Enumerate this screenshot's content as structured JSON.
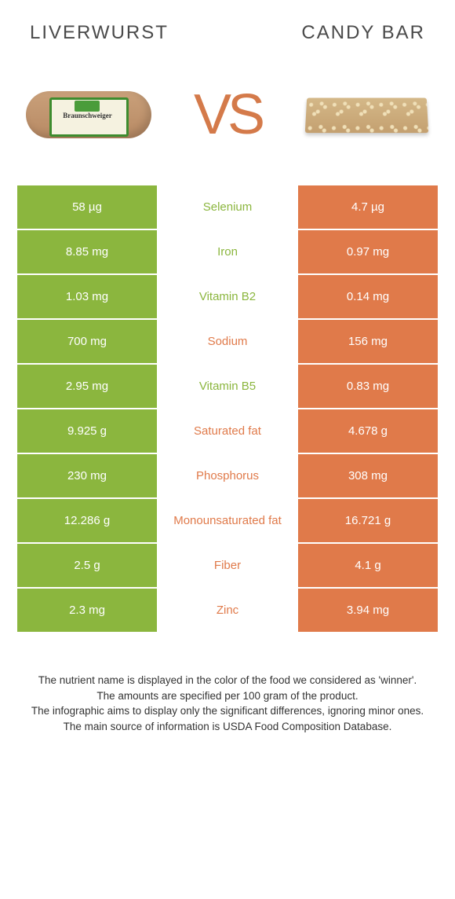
{
  "header": {
    "left": "LIVERWURST",
    "right": "CANDY BAR"
  },
  "vs": "VS",
  "colors": {
    "green": "#8bb63e",
    "orange": "#e07a4a",
    "text": "#333333",
    "white": "#ffffff"
  },
  "rows": [
    {
      "left": "58 µg",
      "label": "Selenium",
      "right": "4.7 µg",
      "winner": "left"
    },
    {
      "left": "8.85 mg",
      "label": "Iron",
      "right": "0.97 mg",
      "winner": "left"
    },
    {
      "left": "1.03 mg",
      "label": "Vitamin B2",
      "right": "0.14 mg",
      "winner": "left"
    },
    {
      "left": "700 mg",
      "label": "Sodium",
      "right": "156 mg",
      "winner": "right"
    },
    {
      "left": "2.95 mg",
      "label": "Vitamin B5",
      "right": "0.83 mg",
      "winner": "left"
    },
    {
      "left": "9.925 g",
      "label": "Saturated fat",
      "right": "4.678 g",
      "winner": "right"
    },
    {
      "left": "230 mg",
      "label": "Phosphorus",
      "right": "308 mg",
      "winner": "right"
    },
    {
      "left": "12.286 g",
      "label": "Monounsaturated fat",
      "right": "16.721 g",
      "winner": "right"
    },
    {
      "left": "2.5 g",
      "label": "Fiber",
      "right": "4.1 g",
      "winner": "right"
    },
    {
      "left": "2.3 mg",
      "label": "Zinc",
      "right": "3.94 mg",
      "winner": "right"
    }
  ],
  "footer": {
    "l1": "The nutrient name is displayed in the color of the food we considered as 'winner'.",
    "l2": "The amounts are specified per 100 gram of the product.",
    "l3": "The infographic aims to display only the significant differences, ignoring minor ones.",
    "l4": "The main source of information is USDA Food Composition Database."
  }
}
